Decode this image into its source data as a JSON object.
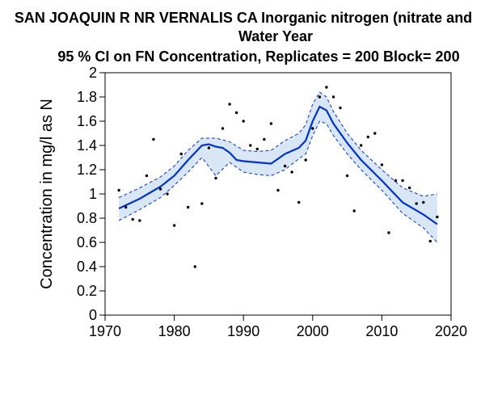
{
  "chart_data": {
    "type": "scatter",
    "title_line1": "SAN JOAQUIN R NR VERNALIS CA   Inorganic nitrogen (nitrate and",
    "title_line2": "Water Year",
    "title_line3": "95 % CI on FN Concentration, Replicates = 200 Block= 200",
    "xlabel": "",
    "ylabel": "Concentration in mg/l as N",
    "xlim": [
      1970,
      2020
    ],
    "ylim": [
      0,
      2
    ],
    "xticks": [
      "1970",
      "1980",
      "1990",
      "2000",
      "2010",
      "2020"
    ],
    "yticks": [
      "0",
      "0.2",
      "0.4",
      "0.6",
      "0.8",
      "1",
      "1.2",
      "1.4",
      "1.6",
      "1.8",
      "2"
    ],
    "colors": {
      "line": "#0033cc",
      "band": "#d9e6f5",
      "points": "#000000"
    },
    "observations": {
      "name": "Observed concentration",
      "x": [
        1972,
        1973,
        1974,
        1975,
        1976,
        1977,
        1978,
        1979,
        1980,
        1981,
        1982,
        1983,
        1984,
        1985,
        1986,
        1987,
        1988,
        1989,
        1990,
        1991,
        1992,
        1993,
        1994,
        1995,
        1996,
        1997,
        1998,
        1999,
        2000,
        2001,
        2002,
        2003,
        2004,
        2005,
        2006,
        2007,
        2008,
        2009,
        2010,
        2011,
        2012,
        2013,
        2014,
        2015,
        2016,
        2017,
        2018
      ],
      "y": [
        1.03,
        0.89,
        0.79,
        0.78,
        1.15,
        1.45,
        1.04,
        1.0,
        0.74,
        1.33,
        0.89,
        0.4,
        0.92,
        1.38,
        1.13,
        1.54,
        1.74,
        1.67,
        1.6,
        1.4,
        1.37,
        1.45,
        1.58,
        1.03,
        1.23,
        1.18,
        0.93,
        1.28,
        1.54,
        1.8,
        1.88,
        1.8,
        1.71,
        1.15,
        0.86,
        1.4,
        1.47,
        1.5,
        1.24,
        0.68,
        1.11,
        1.11,
        1.05,
        0.92,
        0.93,
        0.61,
        0.81
      ]
    },
    "series": [
      {
        "name": "Flow-normalized concentration",
        "x": [
          1972,
          1975,
          1978,
          1980,
          1982,
          1984,
          1985,
          1986,
          1987,
          1988,
          1989,
          1990,
          1992,
          1994,
          1996,
          1998,
          1999,
          2000,
          2001,
          2002,
          2003,
          2005,
          2007,
          2010,
          2013,
          2016,
          2018
        ],
        "values": [
          0.88,
          0.96,
          1.06,
          1.15,
          1.28,
          1.4,
          1.41,
          1.39,
          1.38,
          1.34,
          1.28,
          1.27,
          1.26,
          1.25,
          1.33,
          1.38,
          1.44,
          1.6,
          1.72,
          1.69,
          1.58,
          1.42,
          1.28,
          1.11,
          0.93,
          0.83,
          0.75
        ]
      },
      {
        "name": "95% CI upper",
        "x": [
          1972,
          1975,
          1978,
          1980,
          1982,
          1984,
          1986,
          1988,
          1990,
          1992,
          1994,
          1996,
          1998,
          1999,
          2000,
          2001,
          2002,
          2003,
          2005,
          2007,
          2010,
          2013,
          2016,
          2018
        ],
        "values": [
          0.97,
          1.05,
          1.14,
          1.23,
          1.36,
          1.46,
          1.46,
          1.43,
          1.36,
          1.35,
          1.36,
          1.44,
          1.5,
          1.57,
          1.74,
          1.84,
          1.8,
          1.68,
          1.5,
          1.36,
          1.2,
          1.05,
          0.98,
          1.0
        ]
      },
      {
        "name": "95% CI lower",
        "x": [
          1972,
          1975,
          1978,
          1980,
          1982,
          1984,
          1986,
          1988,
          1990,
          1992,
          1994,
          1996,
          1998,
          1999,
          2000,
          2001,
          2002,
          2003,
          2005,
          2007,
          2010,
          2013,
          2016,
          2018
        ],
        "values": [
          0.78,
          0.87,
          0.97,
          1.07,
          1.18,
          1.3,
          1.15,
          1.26,
          1.18,
          1.16,
          1.15,
          1.2,
          1.29,
          1.33,
          1.48,
          1.6,
          1.58,
          1.48,
          1.33,
          1.2,
          1.03,
          0.84,
          0.72,
          0.6
        ]
      }
    ]
  }
}
